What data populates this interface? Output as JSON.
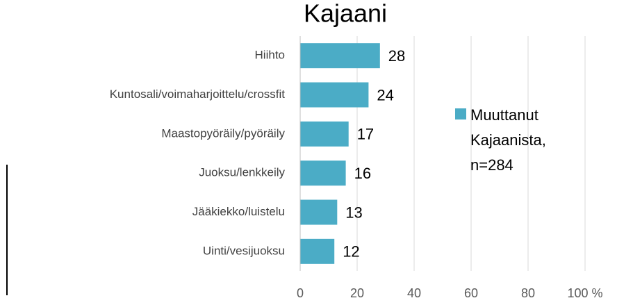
{
  "chart_data": {
    "type": "bar",
    "orientation": "horizontal",
    "title": "Kajaani",
    "categories": [
      "Hiihto",
      "Kuntosali/voimaharjoittelu/crossfit",
      "Maastopyöräily/pyöräily",
      "Juoksu/lenkkeily",
      "Jääkiekko/luistelu",
      "Uinti/vesijuoksu"
    ],
    "series": [
      {
        "name": "Muuttanut Kajaanista, n=284",
        "color": "#4bacc6",
        "values": [
          28,
          24,
          17,
          16,
          13,
          12
        ]
      }
    ],
    "xlim": [
      0,
      100
    ],
    "xticks": [
      0,
      20,
      40,
      60,
      80,
      {
        "value": 100,
        "label": "100 %"
      }
    ],
    "grid": true,
    "legend": "right"
  }
}
